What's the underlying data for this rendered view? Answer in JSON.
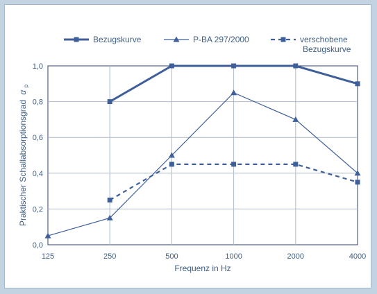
{
  "chart_data": {
    "type": "line",
    "xlabel": "Frequenz in Hz",
    "ylabel": "Praktischer Schallabsorptionsgrad",
    "ylabel_symbol": "α",
    "ylabel_subscript": "p",
    "categories": [
      "125",
      "250",
      "500",
      "1000",
      "2000",
      "4000"
    ],
    "yticks": [
      "0,0",
      "0,2",
      "0,4",
      "0,6",
      "0,8",
      "1,0"
    ],
    "ylim": [
      0,
      1.0
    ],
    "grid": true,
    "legend_position": "top",
    "series": [
      {
        "name": "Bezugskurve",
        "values": [
          null,
          0.8,
          1.0,
          1.0,
          1.0,
          0.9
        ],
        "style": "solid-thick",
        "marker": "square",
        "color": "#3e5f9a"
      },
      {
        "name": "P-BA 297/2000",
        "values": [
          0.05,
          0.15,
          0.5,
          0.85,
          0.7,
          0.4
        ],
        "style": "solid-thin",
        "marker": "triangle",
        "color": "#3e5f9a"
      },
      {
        "name_lines": [
          "verschobene",
          "Bezugskurve"
        ],
        "values": [
          null,
          0.25,
          0.45,
          0.45,
          0.45,
          0.35
        ],
        "style": "dashed",
        "marker": "square",
        "color": "#3e5f9a"
      }
    ]
  }
}
